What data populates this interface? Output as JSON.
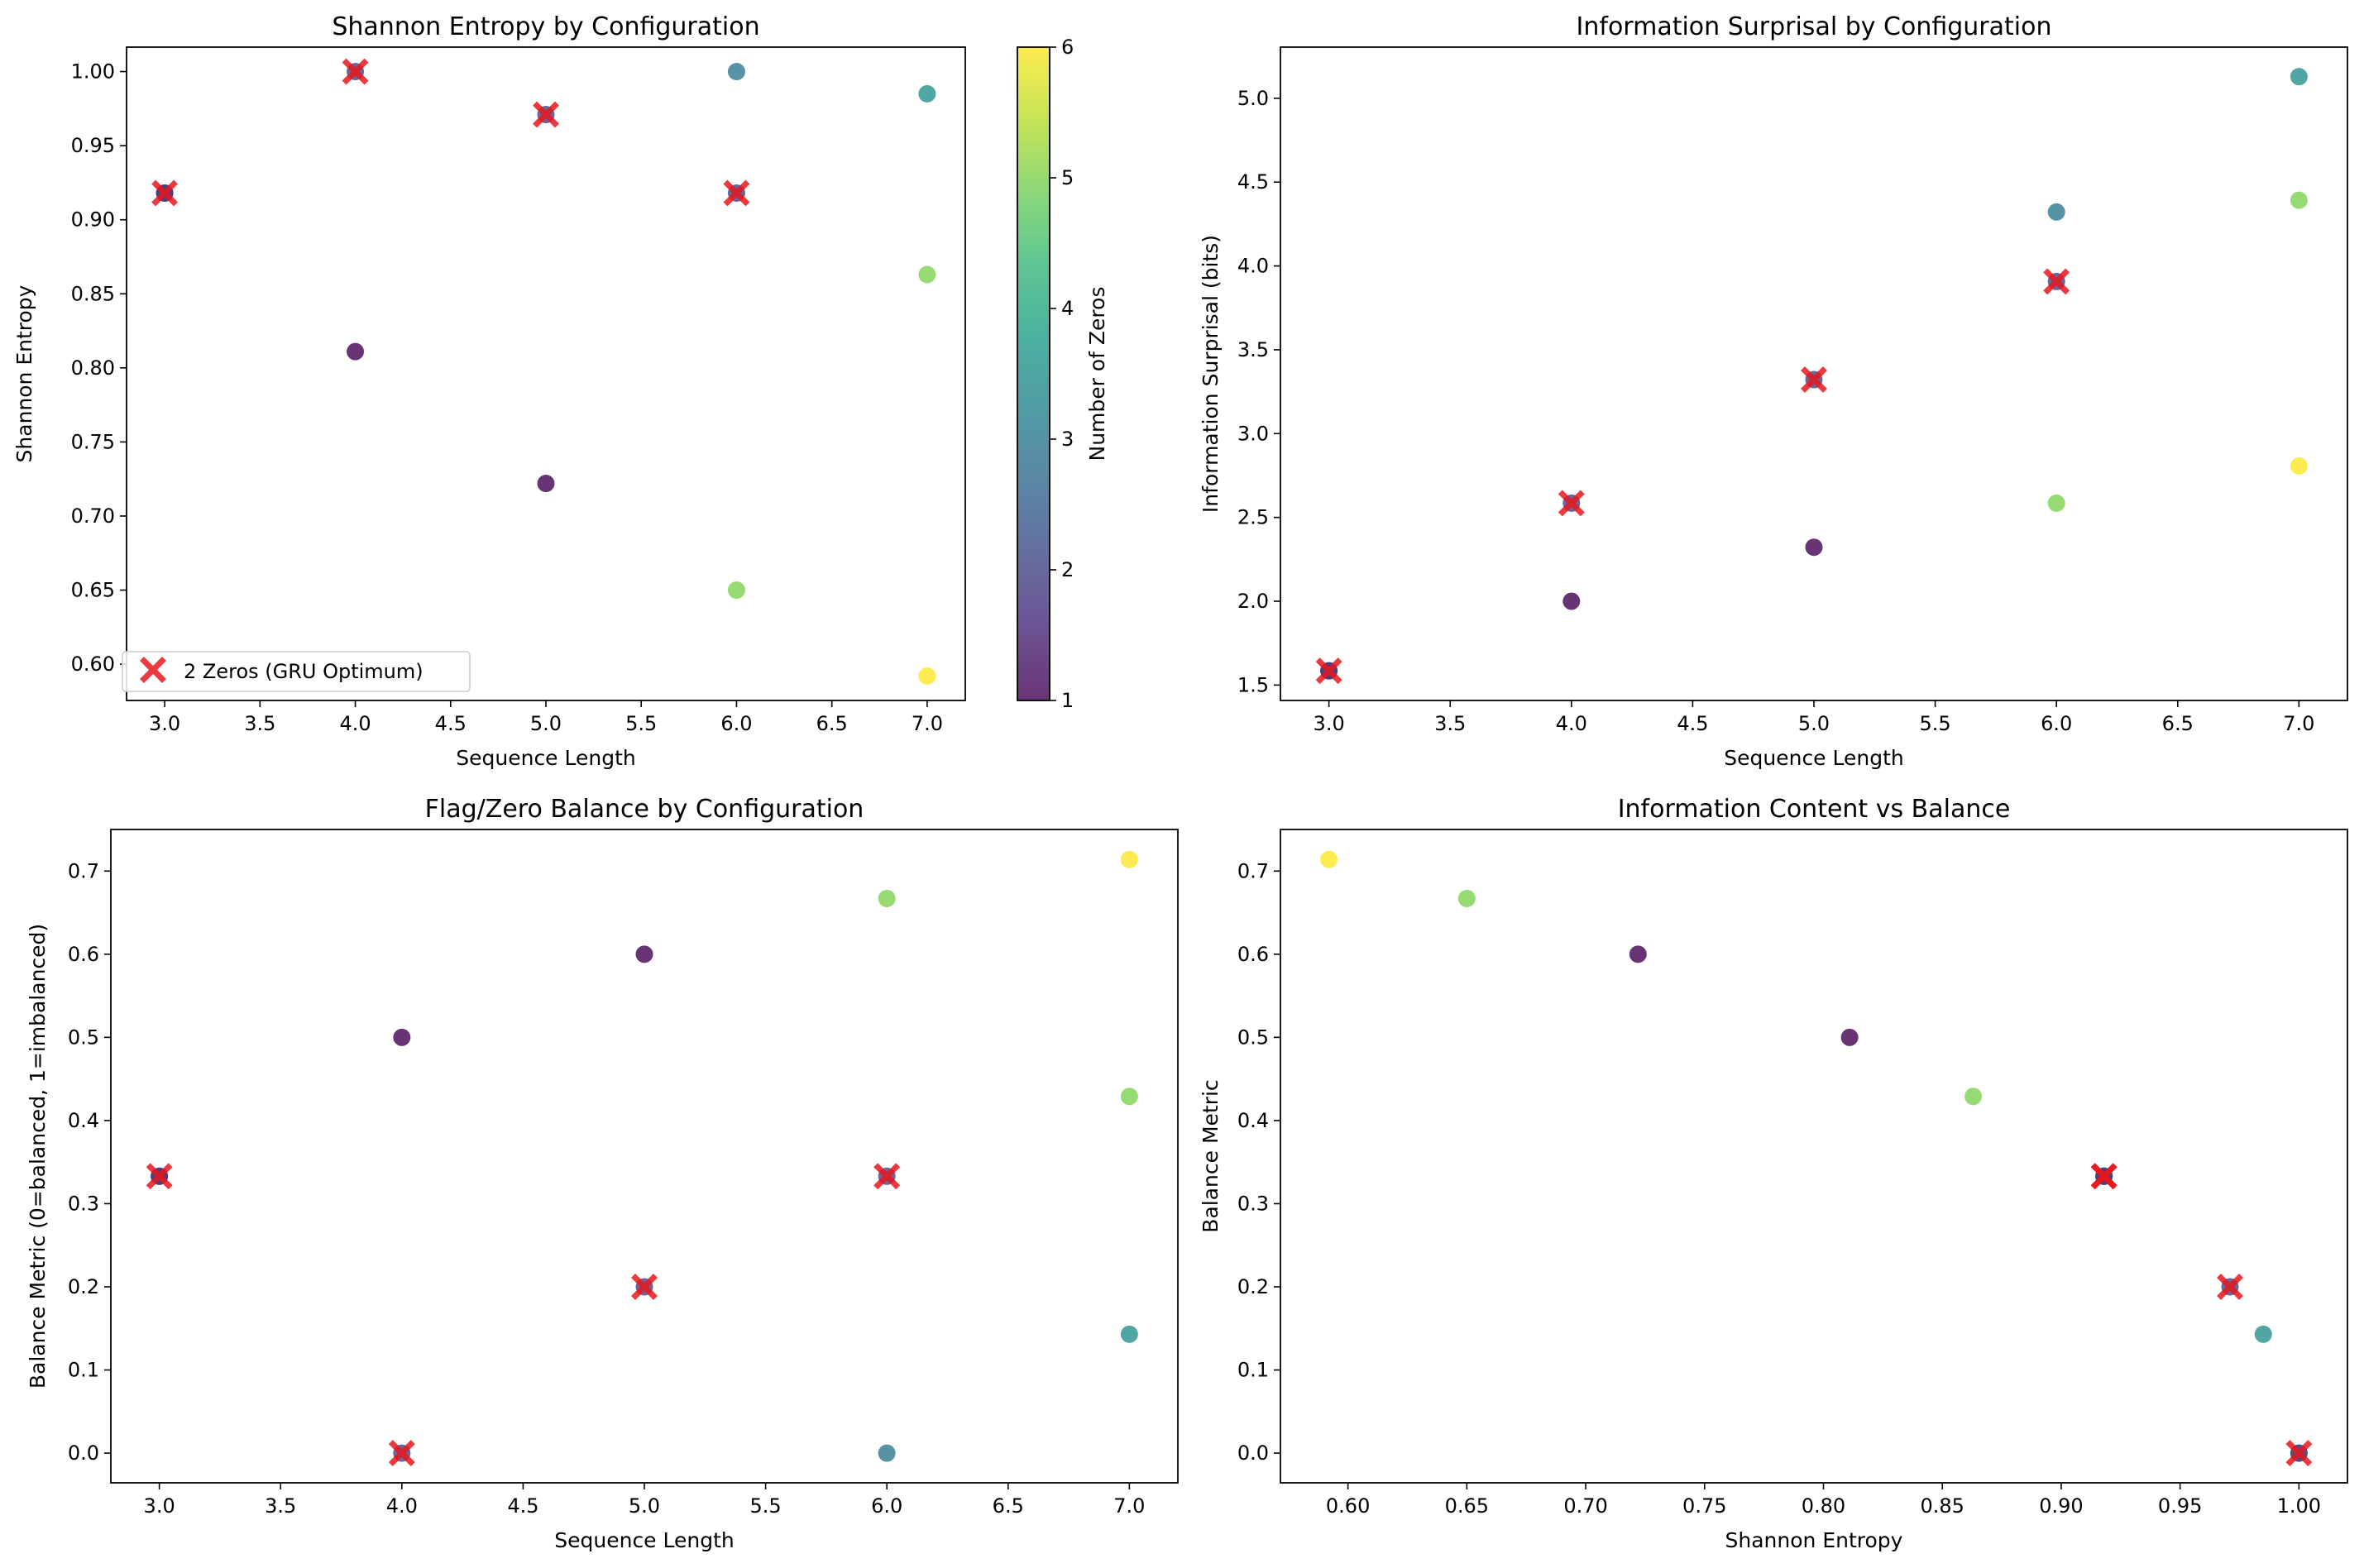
{
  "colormap": {
    "name": "viridis",
    "label": "Number of Zeros",
    "range": [
      1,
      6
    ],
    "ticks": [
      1,
      2,
      3,
      4,
      5,
      6
    ],
    "stops": [
      "#440154",
      "#482878",
      "#3e4989",
      "#31688e",
      "#26828e",
      "#1f9e89",
      "#35b779",
      "#6ece58",
      "#b5de2b",
      "#fde725"
    ]
  },
  "highlight": {
    "label": "2 Zeros (GRU Optimum)",
    "color": "#e8161b",
    "zeros": 2
  },
  "points": [
    {
      "length": 3,
      "zeros": 1,
      "entropy": 0.918,
      "surprisal": 1.585,
      "balance": 0.333
    },
    {
      "length": 3,
      "zeros": 2,
      "entropy": 0.918,
      "surprisal": 1.585,
      "balance": 0.333
    },
    {
      "length": 4,
      "zeros": 1,
      "entropy": 0.811,
      "surprisal": 2.0,
      "balance": 0.5
    },
    {
      "length": 4,
      "zeros": 2,
      "entropy": 1.0,
      "surprisal": 2.585,
      "balance": 0.0
    },
    {
      "length": 5,
      "zeros": 1,
      "entropy": 0.722,
      "surprisal": 2.322,
      "balance": 0.6
    },
    {
      "length": 5,
      "zeros": 2,
      "entropy": 0.971,
      "surprisal": 3.322,
      "balance": 0.2
    },
    {
      "length": 6,
      "zeros": 2,
      "entropy": 0.918,
      "surprisal": 3.907,
      "balance": 0.333
    },
    {
      "length": 6,
      "zeros": 3,
      "entropy": 1.0,
      "surprisal": 4.322,
      "balance": 0.0
    },
    {
      "length": 6,
      "zeros": 5,
      "entropy": 0.65,
      "surprisal": 2.585,
      "balance": 0.667
    },
    {
      "length": 7,
      "zeros": 3.5,
      "entropy": 0.985,
      "surprisal": 5.129,
      "balance": 0.143
    },
    {
      "length": 7,
      "zeros": 5,
      "entropy": 0.863,
      "surprisal": 4.392,
      "balance": 0.429
    },
    {
      "length": 7,
      "zeros": 6,
      "entropy": 0.592,
      "surprisal": 2.807,
      "balance": 0.714
    }
  ],
  "chart_data": [
    {
      "type": "scatter",
      "title": "Shannon Entropy by Configuration",
      "xlabel": "Sequence Length",
      "ylabel": "Shannon Entropy",
      "x_field": "length",
      "y_field": "entropy",
      "xlim": [
        2.8,
        7.2
      ],
      "ylim": [
        0.5755,
        1.0165
      ],
      "xticks": [
        "3.0",
        "3.5",
        "4.0",
        "4.5",
        "5.0",
        "5.5",
        "6.0",
        "6.5",
        "7.0"
      ],
      "yticks": [
        "0.60",
        "0.65",
        "0.70",
        "0.75",
        "0.80",
        "0.85",
        "0.90",
        "0.95",
        "1.00"
      ],
      "legend": "lower-left",
      "colorbar": true
    },
    {
      "type": "scatter",
      "title": "Information Surprisal by Configuration",
      "xlabel": "Sequence Length",
      "ylabel": "Information Surprisal (bits)",
      "x_field": "length",
      "y_field": "surprisal",
      "xlim": [
        2.8,
        7.2
      ],
      "ylim": [
        1.408,
        5.305
      ],
      "xticks": [
        "3.0",
        "3.5",
        "4.0",
        "4.5",
        "5.0",
        "5.5",
        "6.0",
        "6.5",
        "7.0"
      ],
      "yticks": [
        "1.5",
        "2.0",
        "2.5",
        "3.0",
        "3.5",
        "4.0",
        "4.5",
        "5.0"
      ]
    },
    {
      "type": "scatter",
      "title": "Flag/Zero Balance by Configuration",
      "xlabel": "Sequence Length",
      "ylabel": "Balance Metric (0=balanced, 1=imbalanced)",
      "x_field": "length",
      "y_field": "balance",
      "xlim": [
        2.8,
        7.2
      ],
      "ylim": [
        -0.0357,
        0.75
      ],
      "xticks": [
        "3.0",
        "3.5",
        "4.0",
        "4.5",
        "5.0",
        "5.5",
        "6.0",
        "6.5",
        "7.0"
      ],
      "yticks": [
        "0.0",
        "0.1",
        "0.2",
        "0.3",
        "0.4",
        "0.5",
        "0.6",
        "0.7"
      ]
    },
    {
      "type": "scatter",
      "title": "Information Content vs Balance",
      "xlabel": "Shannon Entropy",
      "ylabel": "Balance Metric",
      "x_field": "entropy",
      "y_field": "balance",
      "xlim": [
        0.5716,
        1.0204
      ],
      "ylim": [
        -0.0357,
        0.75
      ],
      "xticks": [
        "0.60",
        "0.65",
        "0.70",
        "0.75",
        "0.80",
        "0.85",
        "0.90",
        "0.95",
        "1.00"
      ],
      "yticks": [
        "0.0",
        "0.1",
        "0.2",
        "0.3",
        "0.4",
        "0.5",
        "0.6",
        "0.7"
      ]
    }
  ]
}
